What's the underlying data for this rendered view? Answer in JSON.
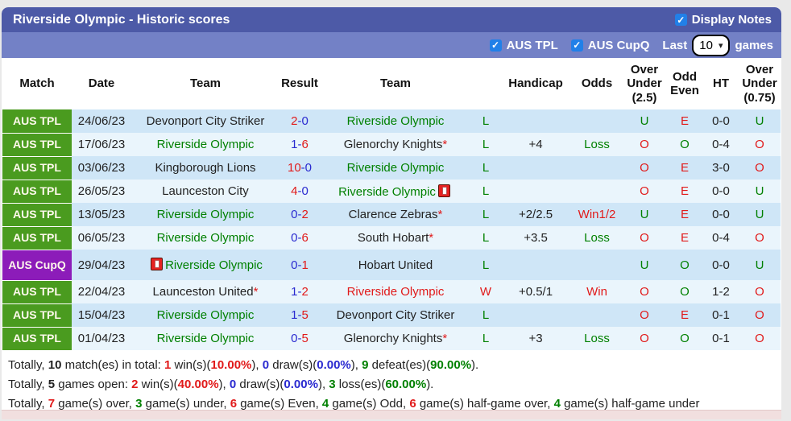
{
  "header": {
    "title": "Riverside Olympic - Historic scores",
    "display_notes": {
      "label": "Display Notes",
      "checked": true
    }
  },
  "filters": {
    "aus_tpl": {
      "label": "AUS TPL",
      "checked": true
    },
    "aus_cupq": {
      "label": "AUS CupQ",
      "checked": true
    },
    "last_label": "Last",
    "last_games_selected": "10",
    "games_label": "games"
  },
  "colors": {
    "bar_dark": "#4d5aa7",
    "bar_light": "#7381c6",
    "league_green": "#4a9b1f",
    "league_purple": "#8c1cb9",
    "row_odd": "#cfe6f7",
    "row_even": "#eaf5fc",
    "win_red": "#e11a1a",
    "loss_green": "#008000",
    "score_blue": "#2a2ad0"
  },
  "table": {
    "columns": [
      "Match",
      "Date",
      "Team",
      "Result",
      "Team",
      "",
      "Handicap",
      "Odds",
      "Over Under (2.5)",
      "Odd Even",
      "HT",
      "Over Under (0.75)"
    ],
    "rows": [
      {
        "league": "AUS TPL",
        "league_type": "tpl",
        "date": "24/06/23",
        "home": {
          "name": "Devonport City Striker",
          "color": "black",
          "star": false,
          "redcard": null
        },
        "result": [
          {
            "t": "2",
            "c": "red"
          },
          {
            "t": "-",
            "c": "blue"
          },
          {
            "t": "0",
            "c": "blue"
          }
        ],
        "away": {
          "name": "Riverside Olympic",
          "color": "green",
          "star": false,
          "redcard": null
        },
        "letter": {
          "t": "L",
          "c": "green"
        },
        "handicap": "",
        "odds": {
          "t": "",
          "c": "black"
        },
        "ou25": {
          "t": "U",
          "c": "green"
        },
        "oddeven": {
          "t": "E",
          "c": "red"
        },
        "ht": "0-0",
        "ou075": {
          "t": "U",
          "c": "green"
        }
      },
      {
        "league": "AUS TPL",
        "league_type": "tpl",
        "date": "17/06/23",
        "home": {
          "name": "Riverside Olympic",
          "color": "green",
          "star": false,
          "redcard": null
        },
        "result": [
          {
            "t": "1",
            "c": "blue"
          },
          {
            "t": "-",
            "c": "blue"
          },
          {
            "t": "6",
            "c": "red"
          }
        ],
        "away": {
          "name": "Glenorchy Knights",
          "color": "black",
          "star": true,
          "redcard": null
        },
        "letter": {
          "t": "L",
          "c": "green"
        },
        "handicap": "+4",
        "odds": {
          "t": "Loss",
          "c": "green"
        },
        "ou25": {
          "t": "O",
          "c": "red"
        },
        "oddeven": {
          "t": "O",
          "c": "green"
        },
        "ht": "0-4",
        "ou075": {
          "t": "O",
          "c": "red"
        }
      },
      {
        "league": "AUS TPL",
        "league_type": "tpl",
        "date": "03/06/23",
        "home": {
          "name": "Kingborough Lions",
          "color": "black",
          "star": false,
          "redcard": null
        },
        "result": [
          {
            "t": "10",
            "c": "red"
          },
          {
            "t": "-",
            "c": "blue"
          },
          {
            "t": "0",
            "c": "blue"
          }
        ],
        "away": {
          "name": "Riverside Olympic",
          "color": "green",
          "star": false,
          "redcard": null
        },
        "letter": {
          "t": "L",
          "c": "green"
        },
        "handicap": "",
        "odds": {
          "t": "",
          "c": "black"
        },
        "ou25": {
          "t": "O",
          "c": "red"
        },
        "oddeven": {
          "t": "E",
          "c": "red"
        },
        "ht": "3-0",
        "ou075": {
          "t": "O",
          "c": "red"
        }
      },
      {
        "league": "AUS TPL",
        "league_type": "tpl",
        "date": "26/05/23",
        "home": {
          "name": "Launceston City",
          "color": "black",
          "star": false,
          "redcard": null
        },
        "result": [
          {
            "t": "4",
            "c": "red"
          },
          {
            "t": "-",
            "c": "blue"
          },
          {
            "t": "0",
            "c": "blue"
          }
        ],
        "away": {
          "name": "Riverside Olympic",
          "color": "green",
          "star": false,
          "redcard": "after"
        },
        "letter": {
          "t": "L",
          "c": "green"
        },
        "handicap": "",
        "odds": {
          "t": "",
          "c": "black"
        },
        "ou25": {
          "t": "O",
          "c": "red"
        },
        "oddeven": {
          "t": "E",
          "c": "red"
        },
        "ht": "0-0",
        "ou075": {
          "t": "U",
          "c": "green"
        }
      },
      {
        "league": "AUS TPL",
        "league_type": "tpl",
        "date": "13/05/23",
        "home": {
          "name": "Riverside Olympic",
          "color": "green",
          "star": false,
          "redcard": null
        },
        "result": [
          {
            "t": "0",
            "c": "blue"
          },
          {
            "t": "-",
            "c": "blue"
          },
          {
            "t": "2",
            "c": "red"
          }
        ],
        "away": {
          "name": "Clarence Zebras",
          "color": "black",
          "star": true,
          "redcard": null
        },
        "letter": {
          "t": "L",
          "c": "green"
        },
        "handicap": "+2/2.5",
        "odds": {
          "t": "Win1/2",
          "c": "red"
        },
        "ou25": {
          "t": "U",
          "c": "green"
        },
        "oddeven": {
          "t": "E",
          "c": "red"
        },
        "ht": "0-0",
        "ou075": {
          "t": "U",
          "c": "green"
        }
      },
      {
        "league": "AUS TPL",
        "league_type": "tpl",
        "date": "06/05/23",
        "home": {
          "name": "Riverside Olympic",
          "color": "green",
          "star": false,
          "redcard": null
        },
        "result": [
          {
            "t": "0",
            "c": "blue"
          },
          {
            "t": "-",
            "c": "blue"
          },
          {
            "t": "6",
            "c": "red"
          }
        ],
        "away": {
          "name": "South Hobart",
          "color": "black",
          "star": true,
          "redcard": null
        },
        "letter": {
          "t": "L",
          "c": "green"
        },
        "handicap": "+3.5",
        "odds": {
          "t": "Loss",
          "c": "green"
        },
        "ou25": {
          "t": "O",
          "c": "red"
        },
        "oddeven": {
          "t": "E",
          "c": "red"
        },
        "ht": "0-4",
        "ou075": {
          "t": "O",
          "c": "red"
        }
      },
      {
        "league": "AUS CupQ",
        "league_type": "cupq",
        "date": "29/04/23",
        "home": {
          "name": "Riverside Olympic",
          "color": "green",
          "star": false,
          "redcard": "before"
        },
        "result": [
          {
            "t": "0",
            "c": "blue"
          },
          {
            "t": "-",
            "c": "blue"
          },
          {
            "t": "1",
            "c": "red"
          }
        ],
        "away": {
          "name": "Hobart United",
          "color": "black",
          "star": false,
          "redcard": null
        },
        "letter": {
          "t": "L",
          "c": "green"
        },
        "handicap": "",
        "odds": {
          "t": "",
          "c": "black"
        },
        "ou25": {
          "t": "U",
          "c": "green"
        },
        "oddeven": {
          "t": "O",
          "c": "green"
        },
        "ht": "0-0",
        "ou075": {
          "t": "U",
          "c": "green"
        }
      },
      {
        "league": "AUS TPL",
        "league_type": "tpl",
        "date": "22/04/23",
        "home": {
          "name": "Launceston United",
          "color": "black",
          "star": true,
          "redcard": null
        },
        "result": [
          {
            "t": "1",
            "c": "blue"
          },
          {
            "t": "-",
            "c": "blue"
          },
          {
            "t": "2",
            "c": "red"
          }
        ],
        "away": {
          "name": "Riverside Olympic",
          "color": "red",
          "star": false,
          "redcard": null
        },
        "letter": {
          "t": "W",
          "c": "red"
        },
        "handicap": "+0.5/1",
        "odds": {
          "t": "Win",
          "c": "red"
        },
        "ou25": {
          "t": "O",
          "c": "red"
        },
        "oddeven": {
          "t": "O",
          "c": "green"
        },
        "ht": "1-2",
        "ou075": {
          "t": "O",
          "c": "red"
        }
      },
      {
        "league": "AUS TPL",
        "league_type": "tpl",
        "date": "15/04/23",
        "home": {
          "name": "Riverside Olympic",
          "color": "green",
          "star": false,
          "redcard": null
        },
        "result": [
          {
            "t": "1",
            "c": "blue"
          },
          {
            "t": "-",
            "c": "blue"
          },
          {
            "t": "5",
            "c": "red"
          }
        ],
        "away": {
          "name": "Devonport City Striker",
          "color": "black",
          "star": false,
          "redcard": null
        },
        "letter": {
          "t": "L",
          "c": "green"
        },
        "handicap": "",
        "odds": {
          "t": "",
          "c": "black"
        },
        "ou25": {
          "t": "O",
          "c": "red"
        },
        "oddeven": {
          "t": "E",
          "c": "red"
        },
        "ht": "0-1",
        "ou075": {
          "t": "O",
          "c": "red"
        }
      },
      {
        "league": "AUS TPL",
        "league_type": "tpl",
        "date": "01/04/23",
        "home": {
          "name": "Riverside Olympic",
          "color": "green",
          "star": false,
          "redcard": null
        },
        "result": [
          {
            "t": "0",
            "c": "blue"
          },
          {
            "t": "-",
            "c": "blue"
          },
          {
            "t": "5",
            "c": "red"
          }
        ],
        "away": {
          "name": "Glenorchy Knights",
          "color": "black",
          "star": true,
          "redcard": null
        },
        "letter": {
          "t": "L",
          "c": "green"
        },
        "handicap": "+3",
        "odds": {
          "t": "Loss",
          "c": "green"
        },
        "ou25": {
          "t": "O",
          "c": "red"
        },
        "oddeven": {
          "t": "O",
          "c": "green"
        },
        "ht": "0-1",
        "ou075": {
          "t": "O",
          "c": "red"
        }
      }
    ]
  },
  "summary": {
    "lines": [
      [
        {
          "t": "Totally, ",
          "c": "black",
          "bold": false
        },
        {
          "t": "10",
          "c": "black",
          "bold": true
        },
        {
          "t": " match(es) in total: ",
          "c": "black",
          "bold": false
        },
        {
          "t": "1",
          "c": "red",
          "bold": true
        },
        {
          "t": " win(s)(",
          "c": "black",
          "bold": false
        },
        {
          "t": "10.00%",
          "c": "red",
          "bold": true
        },
        {
          "t": "), ",
          "c": "black",
          "bold": false
        },
        {
          "t": "0",
          "c": "blue",
          "bold": true
        },
        {
          "t": " draw(s)(",
          "c": "black",
          "bold": false
        },
        {
          "t": "0.00%",
          "c": "blue",
          "bold": true
        },
        {
          "t": "), ",
          "c": "black",
          "bold": false
        },
        {
          "t": "9",
          "c": "green",
          "bold": true
        },
        {
          "t": " defeat(es)(",
          "c": "black",
          "bold": false
        },
        {
          "t": "90.00%",
          "c": "green",
          "bold": true
        },
        {
          "t": ").",
          "c": "black",
          "bold": false
        }
      ],
      [
        {
          "t": "Totally, ",
          "c": "black",
          "bold": false
        },
        {
          "t": "5",
          "c": "black",
          "bold": true
        },
        {
          "t": " games open: ",
          "c": "black",
          "bold": false
        },
        {
          "t": "2",
          "c": "red",
          "bold": true
        },
        {
          "t": " win(s)(",
          "c": "black",
          "bold": false
        },
        {
          "t": "40.00%",
          "c": "red",
          "bold": true
        },
        {
          "t": "), ",
          "c": "black",
          "bold": false
        },
        {
          "t": "0",
          "c": "blue",
          "bold": true
        },
        {
          "t": " draw(s)(",
          "c": "black",
          "bold": false
        },
        {
          "t": "0.00%",
          "c": "blue",
          "bold": true
        },
        {
          "t": "), ",
          "c": "black",
          "bold": false
        },
        {
          "t": "3",
          "c": "green",
          "bold": true
        },
        {
          "t": " loss(es)(",
          "c": "black",
          "bold": false
        },
        {
          "t": "60.00%",
          "c": "green",
          "bold": true
        },
        {
          "t": ").",
          "c": "black",
          "bold": false
        }
      ],
      [
        {
          "t": "Totally, ",
          "c": "black",
          "bold": false
        },
        {
          "t": "7",
          "c": "red",
          "bold": true
        },
        {
          "t": " game(s) over, ",
          "c": "black",
          "bold": false
        },
        {
          "t": "3",
          "c": "green",
          "bold": true
        },
        {
          "t": " game(s) under, ",
          "c": "black",
          "bold": false
        },
        {
          "t": "6",
          "c": "red",
          "bold": true
        },
        {
          "t": " game(s) Even, ",
          "c": "black",
          "bold": false
        },
        {
          "t": "4",
          "c": "green",
          "bold": true
        },
        {
          "t": " game(s) Odd, ",
          "c": "black",
          "bold": false
        },
        {
          "t": "6",
          "c": "red",
          "bold": true
        },
        {
          "t": " game(s) half-game over, ",
          "c": "black",
          "bold": false
        },
        {
          "t": "4",
          "c": "green",
          "bold": true
        },
        {
          "t": " game(s) half-game under",
          "c": "black",
          "bold": false
        }
      ]
    ]
  }
}
